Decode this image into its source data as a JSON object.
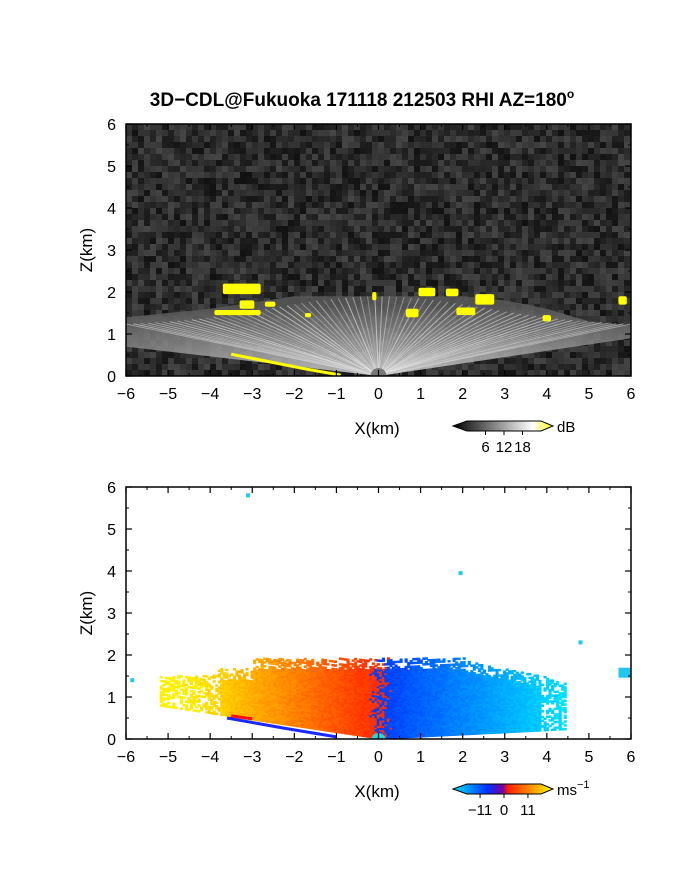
{
  "figure": {
    "title": "3D−CDL@Fukuoka 171118 212503 RHI AZ=180",
    "title_superscript": "o"
  },
  "chart_data": [
    {
      "type": "heatmap",
      "panel": "top",
      "quantity": "backscatter intensity",
      "xlabel": "X(km)",
      "ylabel": "Z(km)",
      "xlim": [
        -6,
        6
      ],
      "ylim": [
        0,
        6
      ],
      "xticks": [
        -6,
        -5,
        -4,
        -3,
        -2,
        -1,
        0,
        1,
        2,
        3,
        4,
        5,
        6
      ],
      "yticks": [
        0,
        1,
        2,
        3,
        4,
        5,
        6
      ],
      "xtick_labels": [
        "−6",
        "−5",
        "−4",
        "−3",
        "−2",
        "−1",
        "0",
        "1",
        "2",
        "3",
        "4",
        "5",
        "6"
      ],
      "ytick_labels": [
        "0",
        "1",
        "2",
        "3",
        "4",
        "5",
        "6"
      ],
      "scan_ceiling_km": 1.9,
      "background": "noise",
      "colorbar": {
        "unit": "dB",
        "ticks": [
          6,
          12,
          18
        ],
        "tick_labels": [
          "6",
          "12",
          "18"
        ],
        "colors": [
          "#000000",
          "#ffffff",
          "#ffff00"
        ]
      },
      "high_echo_patches": [
        {
          "x": -3.7,
          "z": 1.95,
          "w": 0.9,
          "h": 0.25
        },
        {
          "x": -3.3,
          "z": 1.6,
          "w": 0.35,
          "h": 0.2
        },
        {
          "x": -3.9,
          "z": 1.45,
          "w": 1.1,
          "h": 0.12
        },
        {
          "x": -2.7,
          "z": 1.65,
          "w": 0.25,
          "h": 0.12
        },
        {
          "x": -1.75,
          "z": 1.4,
          "w": 0.15,
          "h": 0.1
        },
        {
          "x": -0.15,
          "z": 1.8,
          "w": 0.1,
          "h": 0.2
        },
        {
          "x": 0.95,
          "z": 1.9,
          "w": 0.4,
          "h": 0.2
        },
        {
          "x": 1.6,
          "z": 1.9,
          "w": 0.3,
          "h": 0.18
        },
        {
          "x": 2.3,
          "z": 1.7,
          "w": 0.45,
          "h": 0.25
        },
        {
          "x": 0.65,
          "z": 1.4,
          "w": 0.3,
          "h": 0.2
        },
        {
          "x": 1.85,
          "z": 1.45,
          "w": 0.45,
          "h": 0.18
        },
        {
          "x": 3.9,
          "z": 1.3,
          "w": 0.2,
          "h": 0.15
        },
        {
          "x": 5.7,
          "z": 1.7,
          "w": 0.2,
          "h": 0.2
        }
      ]
    },
    {
      "type": "heatmap",
      "panel": "bottom",
      "quantity": "Doppler velocity",
      "xlabel": "X(km)",
      "ylabel": "Z(km)",
      "xlim": [
        -6,
        6
      ],
      "ylim": [
        0,
        6
      ],
      "xticks": [
        -6,
        -5,
        -4,
        -3,
        -2,
        -1,
        0,
        1,
        2,
        3,
        4,
        5,
        6
      ],
      "yticks": [
        0,
        1,
        2,
        3,
        4,
        5,
        6
      ],
      "xtick_labels": [
        "−6",
        "−5",
        "−4",
        "−3",
        "−2",
        "−1",
        "0",
        "1",
        "2",
        "3",
        "4",
        "5",
        "6"
      ],
      "ytick_labels": [
        "0",
        "1",
        "2",
        "3",
        "4",
        "5",
        "6"
      ],
      "scan_ceiling_km": 1.9,
      "colorbar": {
        "unit": "ms",
        "unit_superscript": "−1",
        "ticks": [
          -11,
          0,
          11
        ],
        "tick_labels": [
          "−11",
          "0",
          "11"
        ],
        "colors": [
          "#00e5ff",
          "#0030ff",
          "#ff2000",
          "#ffff00"
        ]
      },
      "isolated_echoes": [
        {
          "x": -3.1,
          "z": 5.8
        },
        {
          "x": 1.95,
          "z": 3.95
        },
        {
          "x": 4.8,
          "z": 2.3
        },
        {
          "x": 5.75,
          "z": 1.65
        },
        {
          "x": -5.85,
          "z": 1.4
        }
      ]
    }
  ]
}
